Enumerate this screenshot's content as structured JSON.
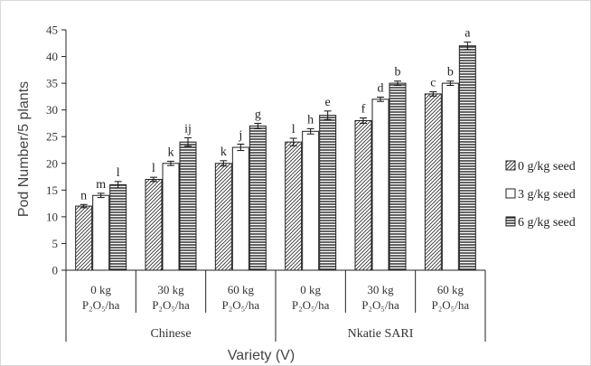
{
  "chart_data": {
    "type": "bar",
    "xlabel": "Variety (V)",
    "ylabel": "Pod Number/5 plants",
    "ylim": [
      0,
      45
    ],
    "yticks": [
      0,
      5,
      10,
      15,
      20,
      25,
      30,
      35,
      40,
      45
    ],
    "grid": false,
    "legend_position": "right",
    "categories": [
      {
        "line1": "0 kg",
        "line2": "P₂O₅/ha"
      },
      {
        "line1": "30 kg",
        "line2": "P₂O₅/ha"
      },
      {
        "line1": "60 kg",
        "line2": "P₂O₅/ha"
      },
      {
        "line1": "0 kg",
        "line2": "P₂O₅/ha"
      },
      {
        "line1": "30 kg",
        "line2": "P₂O₅/ha"
      },
      {
        "line1": "60 kg",
        "line2": "P₂O₅/ha"
      }
    ],
    "groups": [
      {
        "name": "Chinese",
        "categories": [
          0,
          1,
          2
        ]
      },
      {
        "name": "Nkatie SARI",
        "categories": [
          3,
          4,
          5
        ]
      }
    ],
    "series": [
      {
        "name": "0 g/kg seed",
        "pattern": "diagonal",
        "values": [
          12,
          17,
          20,
          24,
          28,
          33
        ],
        "errors": [
          0.3,
          0.4,
          0.5,
          0.7,
          0.5,
          0.4
        ],
        "letters": [
          "n",
          "l",
          "k",
          "l",
          "f",
          "c"
        ]
      },
      {
        "name": "3 g/kg seed",
        "pattern": "open",
        "values": [
          14,
          20,
          23,
          26,
          32,
          35
        ],
        "errors": [
          0.4,
          0.4,
          0.6,
          0.5,
          0.4,
          0.4
        ],
        "letters": [
          "m",
          "k",
          "j",
          "h",
          "d",
          "b"
        ]
      },
      {
        "name": "6 g/kg seed",
        "pattern": "horizontal",
        "values": [
          16,
          24,
          27,
          29,
          35,
          42
        ],
        "errors": [
          0.6,
          0.8,
          0.5,
          0.8,
          0.4,
          0.7
        ],
        "letters": [
          "l",
          "ij",
          "g",
          "e",
          "b",
          "a"
        ]
      }
    ],
    "colors": {
      "bar_stroke": "#222222",
      "axis": "#222222",
      "frame": "#d9d9d9"
    }
  }
}
